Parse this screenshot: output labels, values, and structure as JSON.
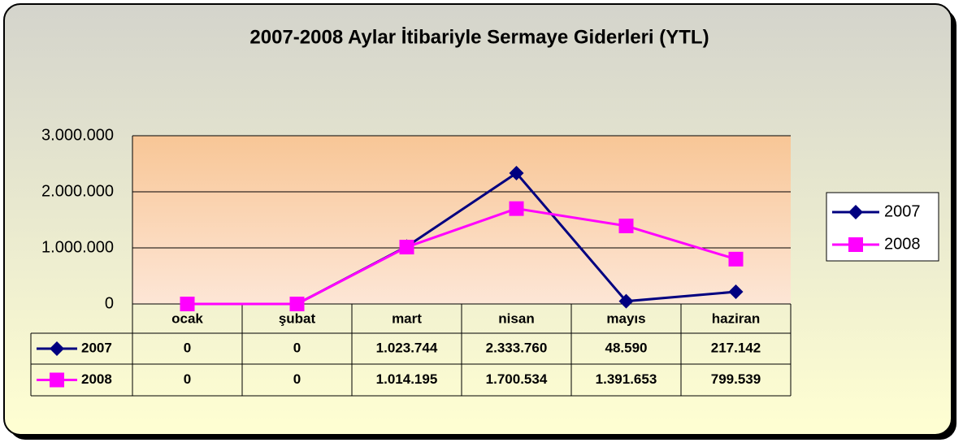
{
  "chart_data": {
    "type": "line",
    "title": "2007-2008 Aylar İtibariyle Sermaye Giderleri (YTL)",
    "categories": [
      "ocak",
      "şubat",
      "mart",
      "nisan",
      "mayıs",
      "haziran"
    ],
    "series": [
      {
        "name": "2007",
        "color": "#000080",
        "marker": "diamond",
        "values": [
          0,
          0,
          1023744,
          2333760,
          48590,
          217142
        ],
        "value_labels": [
          "0",
          "0",
          "1.023.744",
          "2.333.760",
          "48.590",
          "217.142"
        ]
      },
      {
        "name": "2008",
        "color": "#ff00ff",
        "marker": "square",
        "values": [
          0,
          0,
          1014195,
          1700534,
          1391653,
          799539
        ],
        "value_labels": [
          "0",
          "0",
          "1.014.195",
          "1.700.534",
          "1.391.653",
          "799.539"
        ]
      }
    ],
    "ylim": [
      0,
      3000000
    ],
    "yticks": [
      0,
      {
        "value": 1000000,
        "label": "1.000.000"
      },
      {
        "value": 2000000,
        "label": "2.000.000"
      },
      {
        "value": 3000000,
        "label": "3.000.000"
      }
    ],
    "grid": true,
    "legend": "right"
  }
}
